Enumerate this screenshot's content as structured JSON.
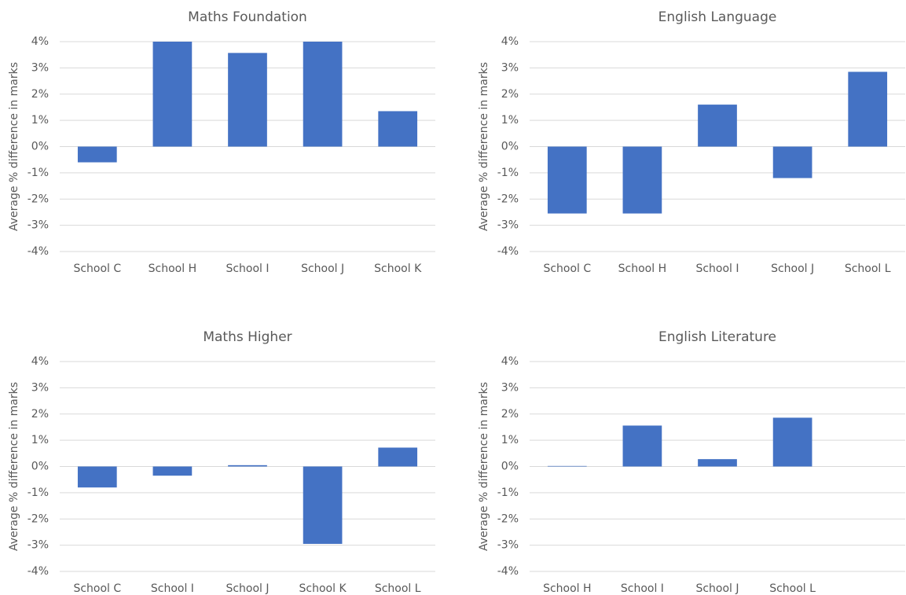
{
  "chart_data": [
    {
      "type": "bar",
      "title": "Maths Foundation",
      "ylabel": "Average % difference in marks",
      "categories": [
        "School C",
        "School H",
        "School I",
        "School J",
        "School K"
      ],
      "values": [
        -0.6,
        4.0,
        3.57,
        4.0,
        1.35
      ],
      "color": "#4472c4",
      "ylim": [
        -4,
        4
      ],
      "yticks": [
        {
          "value": 4,
          "label": "4%"
        },
        {
          "value": 3,
          "label": "3%"
        },
        {
          "value": 2,
          "label": "2%"
        },
        {
          "value": 1,
          "label": "1%"
        },
        {
          "value": 0,
          "label": "0%"
        },
        {
          "value": -1,
          "label": "-1%"
        },
        {
          "value": -2,
          "label": "-2%"
        },
        {
          "value": -3,
          "label": "-3%"
        },
        {
          "value": -4,
          "label": "-4%"
        }
      ],
      "grid": true
    },
    {
      "type": "bar",
      "title": "English Language",
      "ylabel": "Average % difference in marks",
      "categories": [
        "School C",
        "School H",
        "School I",
        "School J",
        "School L"
      ],
      "values": [
        -2.55,
        -2.55,
        1.6,
        -1.2,
        2.85
      ],
      "color": "#4472c4",
      "ylim": [
        -4,
        4
      ],
      "yticks": [
        {
          "value": 4,
          "label": "4%"
        },
        {
          "value": 3,
          "label": "3%"
        },
        {
          "value": 2,
          "label": "2%"
        },
        {
          "value": 1,
          "label": "1%"
        },
        {
          "value": 0,
          "label": "0%"
        },
        {
          "value": -1,
          "label": "-1%"
        },
        {
          "value": -2,
          "label": "-2%"
        },
        {
          "value": -3,
          "label": "-3%"
        },
        {
          "value": -4,
          "label": "-4%"
        }
      ],
      "grid": true
    },
    {
      "type": "bar",
      "title": "Maths Higher",
      "ylabel": "Average % difference in marks",
      "categories": [
        "School C",
        "School I",
        "School J",
        "School K",
        "School L"
      ],
      "values": [
        -0.8,
        -0.35,
        0.05,
        -2.95,
        0.72
      ],
      "color": "#4472c4",
      "ylim": [
        -4,
        4
      ],
      "yticks": [
        {
          "value": 4,
          "label": "4%"
        },
        {
          "value": 3,
          "label": "3%"
        },
        {
          "value": 2,
          "label": "2%"
        },
        {
          "value": 1,
          "label": "1%"
        },
        {
          "value": 0,
          "label": "0%"
        },
        {
          "value": -1,
          "label": "-1%"
        },
        {
          "value": -2,
          "label": "-2%"
        },
        {
          "value": -3,
          "label": "-3%"
        },
        {
          "value": -4,
          "label": "-4%"
        }
      ],
      "grid": true
    },
    {
      "type": "bar",
      "title": "English Literature",
      "ylabel": "Average % difference in marks",
      "categories": [
        "School H",
        "School I",
        "School J",
        "School L",
        null
      ],
      "values": [
        0.02,
        1.56,
        0.28,
        1.86,
        null
      ],
      "color": "#4472c4",
      "ylim": [
        -4,
        4
      ],
      "yticks": [
        {
          "value": 4,
          "label": "4%"
        },
        {
          "value": 3,
          "label": "3%"
        },
        {
          "value": 2,
          "label": "2%"
        },
        {
          "value": 1,
          "label": "1%"
        },
        {
          "value": 0,
          "label": "0%"
        },
        {
          "value": -1,
          "label": "-1%"
        },
        {
          "value": -2,
          "label": "-2%"
        },
        {
          "value": -3,
          "label": "-3%"
        },
        {
          "value": -4,
          "label": "-4%"
        }
      ],
      "grid": true
    }
  ]
}
